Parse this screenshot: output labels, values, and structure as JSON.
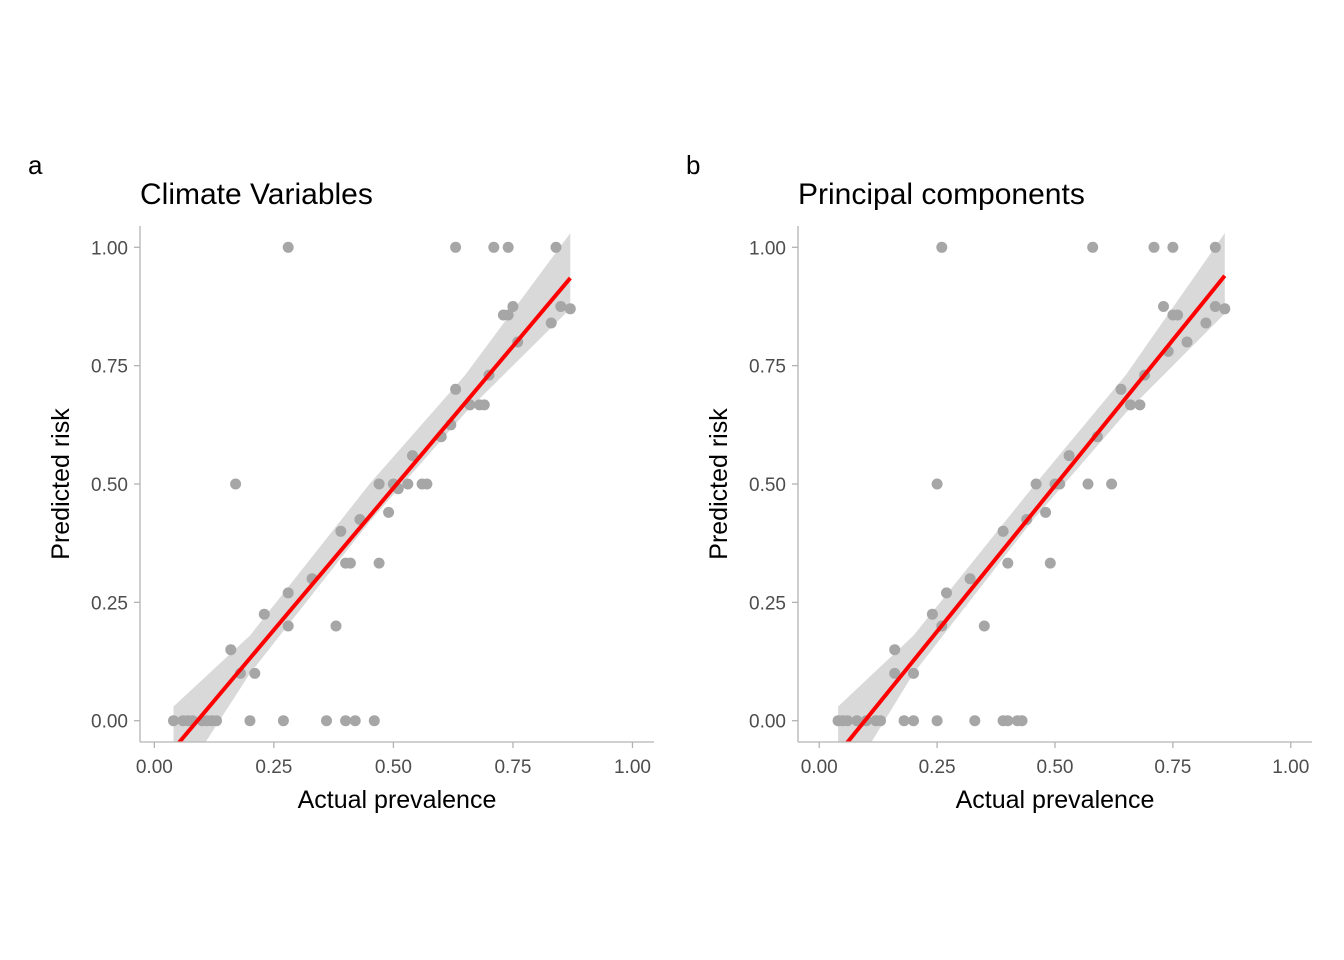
{
  "chart_data": [
    {
      "type": "scatter",
      "tag": "a",
      "title": "Climate Variables",
      "xlabel": "Actual prevalence",
      "ylabel": "Predicted risk",
      "xlim": [
        -0.03,
        1.045
      ],
      "ylim": [
        -0.045,
        1.045
      ],
      "xticks": [
        0,
        0.25,
        0.5,
        0.75,
        1
      ],
      "yticks": [
        0,
        0.25,
        0.5,
        0.75,
        1
      ],
      "xtick_labels": [
        "0.00",
        "0.25",
        "0.50",
        "0.75",
        "1.00"
      ],
      "ytick_labels": [
        "0.00",
        "0.25",
        "0.50",
        "0.75",
        "1.00"
      ],
      "grid": false,
      "point_color": "#a6a6a6",
      "fit_color": "#ff0000",
      "band_color": "#cccccc",
      "points": [
        [
          0.04,
          0
        ],
        [
          0.06,
          0
        ],
        [
          0.07,
          0
        ],
        [
          0.08,
          0
        ],
        [
          0.1,
          0
        ],
        [
          0.11,
          0
        ],
        [
          0.12,
          0
        ],
        [
          0.13,
          0
        ],
        [
          0.2,
          0
        ],
        [
          0.27,
          0
        ],
        [
          0.36,
          0
        ],
        [
          0.4,
          0
        ],
        [
          0.42,
          0
        ],
        [
          0.46,
          0
        ],
        [
          0.16,
          0.15
        ],
        [
          0.18,
          0.1
        ],
        [
          0.21,
          0.1
        ],
        [
          0.23,
          0.225
        ],
        [
          0.28,
          0.2
        ],
        [
          0.28,
          0.27
        ],
        [
          0.33,
          0.3
        ],
        [
          0.38,
          0.2
        ],
        [
          0.39,
          0.4
        ],
        [
          0.4,
          0.333
        ],
        [
          0.41,
          0.333
        ],
        [
          0.43,
          0.425
        ],
        [
          0.47,
          0.5
        ],
        [
          0.47,
          0.333
        ],
        [
          0.49,
          0.44
        ],
        [
          0.5,
          0.5
        ],
        [
          0.51,
          0.49
        ],
        [
          0.53,
          0.5
        ],
        [
          0.54,
          0.56
        ],
        [
          0.56,
          0.5
        ],
        [
          0.57,
          0.5
        ],
        [
          0.6,
          0.6
        ],
        [
          0.62,
          0.625
        ],
        [
          0.63,
          0.7
        ],
        [
          0.66,
          0.667
        ],
        [
          0.68,
          0.667
        ],
        [
          0.69,
          0.667
        ],
        [
          0.7,
          0.73
        ],
        [
          0.73,
          0.857
        ],
        [
          0.74,
          0.857
        ],
        [
          0.75,
          0.875
        ],
        [
          0.76,
          0.8
        ],
        [
          0.83,
          0.84
        ],
        [
          0.85,
          0.875
        ],
        [
          0.87,
          0.87
        ],
        [
          0.17,
          0.5
        ],
        [
          0.28,
          1.0
        ],
        [
          0.63,
          1.0
        ],
        [
          0.71,
          1.0
        ],
        [
          0.74,
          1.0
        ],
        [
          0.84,
          1.0
        ]
      ],
      "fit": {
        "x0": 0.04,
        "y0": -0.06,
        "x1": 0.87,
        "y1": 0.935
      },
      "band": [
        [
          0.04,
          0.03,
          -0.15
        ],
        [
          0.2,
          0.18,
          0.1
        ],
        [
          0.45,
          0.5,
          0.42
        ],
        [
          0.65,
          0.73,
          0.65
        ],
        [
          0.87,
          1.03,
          0.87
        ]
      ]
    },
    {
      "type": "scatter",
      "tag": "b",
      "title": "Principal components",
      "xlabel": "Actual prevalence",
      "ylabel": "Predicted risk",
      "xlim": [
        -0.045,
        1.045
      ],
      "ylim": [
        -0.045,
        1.045
      ],
      "xticks": [
        0,
        0.25,
        0.5,
        0.75,
        1
      ],
      "yticks": [
        0,
        0.25,
        0.5,
        0.75,
        1
      ],
      "xtick_labels": [
        "0.00",
        "0.25",
        "0.50",
        "0.75",
        "1.00"
      ],
      "ytick_labels": [
        "0.00",
        "0.25",
        "0.50",
        "0.75",
        "1.00"
      ],
      "grid": false,
      "point_color": "#a6a6a6",
      "fit_color": "#ff0000",
      "band_color": "#cccccc",
      "points": [
        [
          0.04,
          0
        ],
        [
          0.05,
          0
        ],
        [
          0.06,
          0
        ],
        [
          0.08,
          0
        ],
        [
          0.1,
          0
        ],
        [
          0.12,
          0
        ],
        [
          0.13,
          0
        ],
        [
          0.18,
          0
        ],
        [
          0.2,
          0
        ],
        [
          0.25,
          0
        ],
        [
          0.33,
          0
        ],
        [
          0.39,
          0
        ],
        [
          0.4,
          0
        ],
        [
          0.42,
          0
        ],
        [
          0.43,
          0
        ],
        [
          0.16,
          0.15
        ],
        [
          0.16,
          0.1
        ],
        [
          0.2,
          0.1
        ],
        [
          0.24,
          0.225
        ],
        [
          0.26,
          0.2
        ],
        [
          0.27,
          0.27
        ],
        [
          0.32,
          0.3
        ],
        [
          0.35,
          0.2
        ],
        [
          0.39,
          0.4
        ],
        [
          0.4,
          0.333
        ],
        [
          0.44,
          0.425
        ],
        [
          0.46,
          0.5
        ],
        [
          0.48,
          0.44
        ],
        [
          0.49,
          0.333
        ],
        [
          0.5,
          0.5
        ],
        [
          0.51,
          0.5
        ],
        [
          0.53,
          0.56
        ],
        [
          0.57,
          0.5
        ],
        [
          0.59,
          0.6
        ],
        [
          0.62,
          0.5
        ],
        [
          0.64,
          0.7
        ],
        [
          0.66,
          0.667
        ],
        [
          0.68,
          0.667
        ],
        [
          0.69,
          0.73
        ],
        [
          0.73,
          0.875
        ],
        [
          0.74,
          0.78
        ],
        [
          0.75,
          0.857
        ],
        [
          0.76,
          0.857
        ],
        [
          0.78,
          0.8
        ],
        [
          0.82,
          0.84
        ],
        [
          0.84,
          0.875
        ],
        [
          0.86,
          0.87
        ],
        [
          0.25,
          0.5
        ],
        [
          0.26,
          1.0
        ],
        [
          0.58,
          1.0
        ],
        [
          0.71,
          1.0
        ],
        [
          0.75,
          1.0
        ],
        [
          0.84,
          1.0
        ]
      ],
      "fit": {
        "x0": 0.04,
        "y0": -0.07,
        "x1": 0.86,
        "y1": 0.94
      },
      "band": [
        [
          0.04,
          0.03,
          -0.16
        ],
        [
          0.2,
          0.18,
          0.1
        ],
        [
          0.45,
          0.49,
          0.42
        ],
        [
          0.65,
          0.73,
          0.65
        ],
        [
          0.86,
          1.03,
          0.86
        ]
      ]
    }
  ]
}
